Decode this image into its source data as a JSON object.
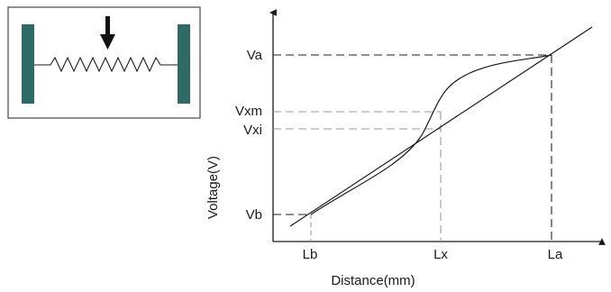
{
  "figure": {
    "y_axis_label": "Voltage(V)",
    "x_axis_label": "Distance(mm)",
    "y_ticks": [
      "Va",
      "Vxm",
      "Vxi",
      "Vb"
    ],
    "x_ticks": [
      "Lb",
      "Lx",
      "La"
    ]
  },
  "colors": {
    "line": "#1a1a1a",
    "dashed_dark": "#222222",
    "dashed_light": "#9a9a9a",
    "electrode": "#2e6b67",
    "inset_border": "#555555"
  }
}
